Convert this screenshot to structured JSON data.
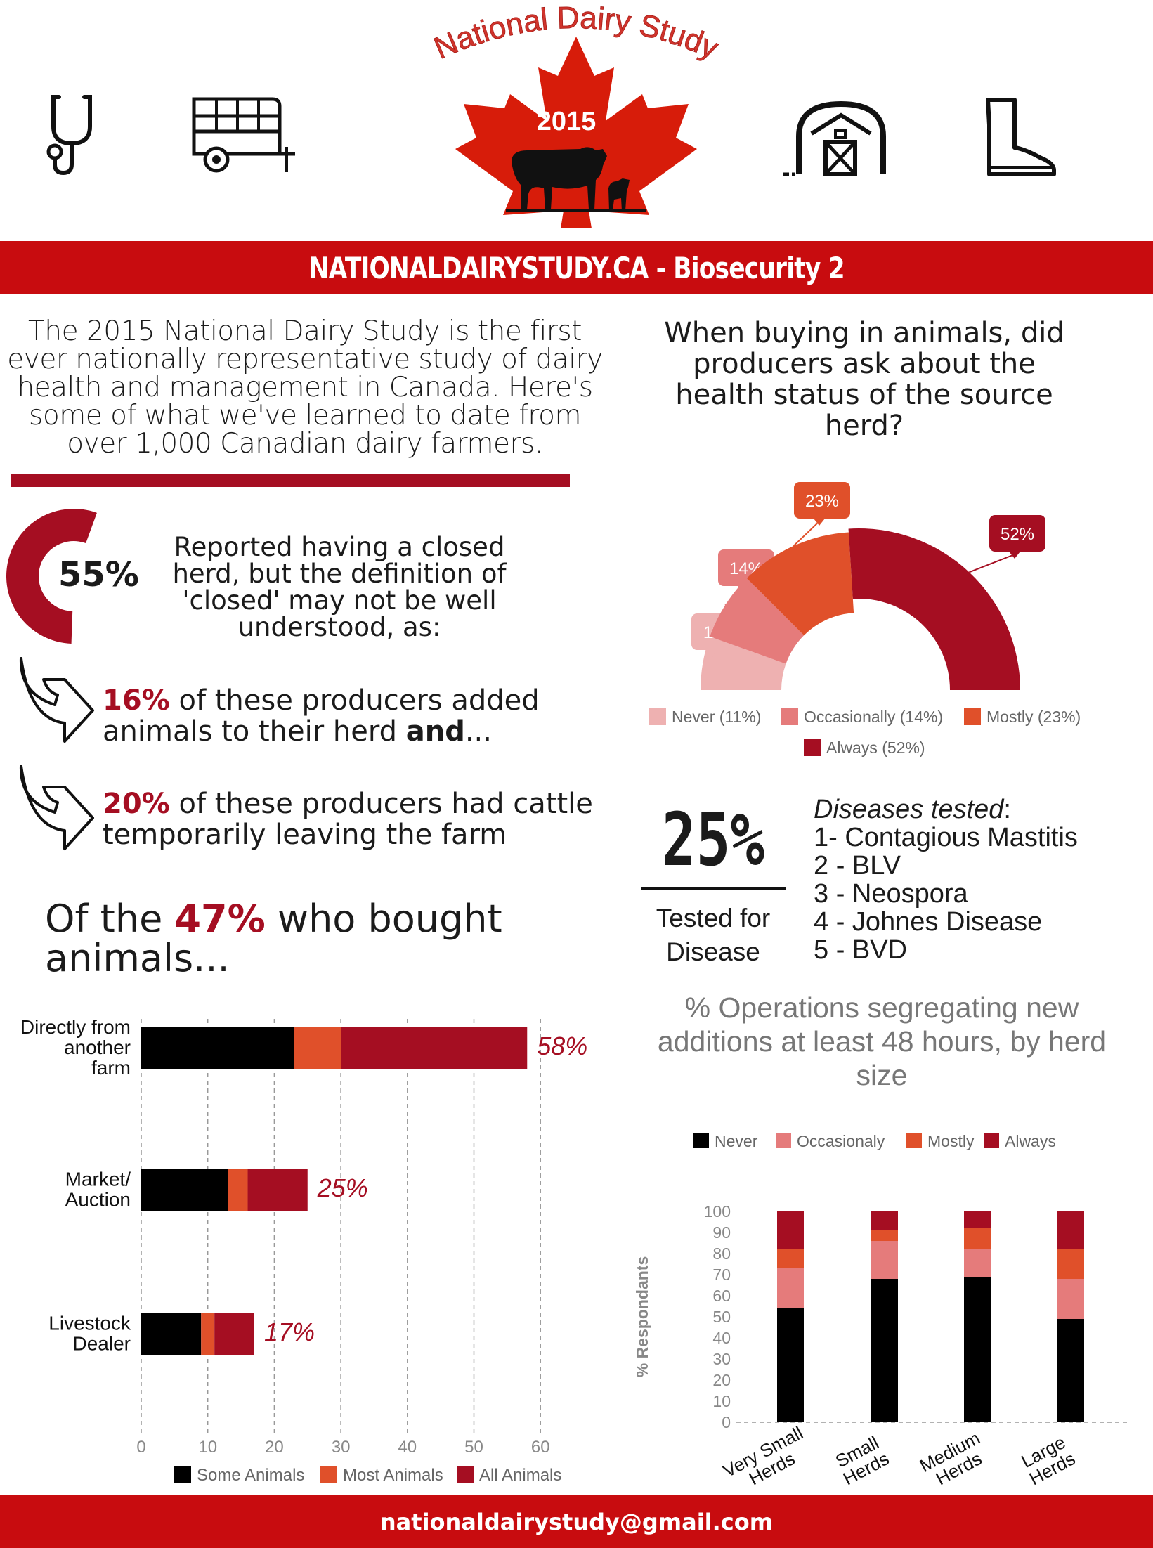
{
  "header": {
    "logo_arc_text": "National Dairy Study",
    "logo_year": "2015",
    "icons": [
      "stethoscope-icon",
      "livestock-trailer-icon",
      "barn-icon",
      "rubber-boot-icon"
    ]
  },
  "banner": {
    "title": "NATIONALDAIRYSTUDY.CA - Biosecurity 2"
  },
  "intro": {
    "line1": "The 2015 National Dairy Study is the first",
    "line2": "ever nationally representative study of dairy",
    "line3": "health and management in Canada. Here's",
    "line4": "some of what we've learned to date from",
    "line5": "over 1,000 Canadian dairy farmers."
  },
  "closed_herd": {
    "percent": "55%",
    "value": 55,
    "text1": "Reported having a closed",
    "text2": "herd, but the definition of",
    "text3": "'closed' may not be well",
    "text4": "understood, as:"
  },
  "stats": {
    "s1_pct": "16%",
    "s1_text": " of these producers added animals to their herd ",
    "s1_bold": "and",
    "s1_tail": "...",
    "s2_pct": "20%",
    "s2_text": " of these producers had cattle temporarily leaving the farm"
  },
  "bought": {
    "prefix": "Of the ",
    "pct": "47%",
    "suffix": " who bought animals..."
  },
  "question": {
    "line1": "When buying in animals, did",
    "line2": "producers ask about the",
    "line3": "health status of the source",
    "line4": "herd?"
  },
  "tested": {
    "pct": "25%",
    "label1": "Tested for",
    "label2": "Disease",
    "diseases_title": "Diseases tested",
    "diseases_colon": ":",
    "d1": "1- Contagious Mastitis",
    "d2": "2 - BLV",
    "d3": "3 - Neospora",
    "d4": "4 - Johnes Disease",
    "d5": "5 - BVD"
  },
  "seg_title": {
    "line1": "% Operations segregating new",
    "line2": "additions at least 48 hours, by herd",
    "line3": "size"
  },
  "footer": {
    "email": "nationaldairystudy@gmail.com"
  },
  "colors": {
    "brand_red": "#c80c0f",
    "dark_red": "#a50e22",
    "orange": "#e0502a",
    "pink": "#e57b7b",
    "light_pink": "#eeb1b1",
    "black": "#000000"
  },
  "chart_data": [
    {
      "type": "pie",
      "subtype": "half-donut",
      "categories": [
        "Never (11%)",
        "Occasionally (14%)",
        "Mostly (23%)",
        "Always (52%)"
      ],
      "values": [
        11,
        14,
        23,
        52
      ],
      "labels": [
        "11%",
        "14%",
        "23%",
        "52%"
      ],
      "colors": [
        "#eeb1b1",
        "#e57b7b",
        "#e0502a",
        "#a50e22"
      ],
      "legend": "bottom"
    },
    {
      "type": "bar",
      "orientation": "horizontal",
      "stacked": true,
      "categories": [
        "Directly from another farm",
        "Market/ Auction",
        "Livestock Dealer"
      ],
      "category_lines": [
        [
          "Directly from",
          "another",
          "farm"
        ],
        [
          "Market/",
          "Auction"
        ],
        [
          "Livestock",
          "Dealer"
        ]
      ],
      "series": [
        {
          "name": "Some Animals",
          "values": [
            23,
            13,
            9
          ],
          "color": "#000000"
        },
        {
          "name": "Most Animals",
          "values": [
            7,
            3,
            2
          ],
          "color": "#e0502a"
        },
        {
          "name": "All Animals",
          "values": [
            28,
            9,
            6
          ],
          "color": "#a50e22"
        }
      ],
      "totals": [
        "58%",
        "25%",
        "17%"
      ],
      "xlim": [
        0,
        60
      ],
      "xticks": [
        0,
        10,
        20,
        30,
        40,
        50,
        60
      ],
      "grid": true,
      "legend": "bottom"
    },
    {
      "type": "bar",
      "stacked": true,
      "categories": [
        "Very Small Herds",
        "Small Herds",
        "Medium Herds",
        "Large Herds"
      ],
      "category_lines": [
        [
          "Very Small",
          "Herds"
        ],
        [
          "Small",
          "Herds"
        ],
        [
          "Medium",
          "Herds"
        ],
        [
          "Large",
          "Herds"
        ]
      ],
      "series": [
        {
          "name": "Never",
          "values": [
            54,
            68,
            69,
            49
          ],
          "color": "#000000"
        },
        {
          "name": "Occasionaly",
          "values": [
            19,
            18,
            13,
            19
          ],
          "color": "#e57b7b"
        },
        {
          "name": "Mostly",
          "values": [
            9,
            5,
            10,
            14
          ],
          "color": "#e0502a"
        },
        {
          "name": "Always",
          "values": [
            18,
            9,
            8,
            18
          ],
          "color": "#a50e22"
        }
      ],
      "ylabel": "% Respondants",
      "ylim": [
        0,
        100
      ],
      "yticks": [
        0,
        10,
        20,
        30,
        40,
        50,
        60,
        70,
        80,
        90,
        100
      ],
      "legend": "top"
    }
  ]
}
